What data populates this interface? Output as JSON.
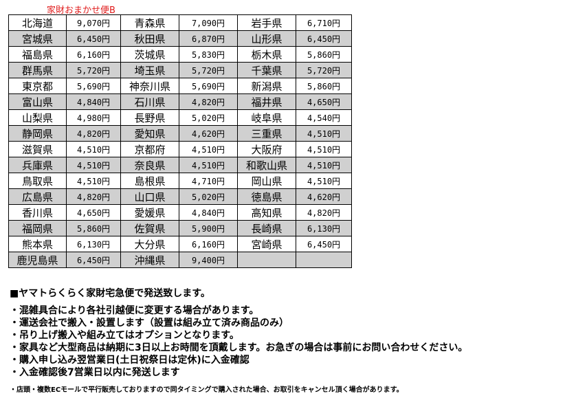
{
  "title": "家財おまかせ便B",
  "rows": [
    [
      [
        "北海道",
        "9,070円"
      ],
      [
        "青森県",
        "7,090円"
      ],
      [
        "岩手県",
        "6,710円"
      ]
    ],
    [
      [
        "宮城県",
        "6,450円"
      ],
      [
        "秋田県",
        "6,870円"
      ],
      [
        "山形県",
        "6,450円"
      ]
    ],
    [
      [
        "福島県",
        "6,160円"
      ],
      [
        "茨城県",
        "5,830円"
      ],
      [
        "栃木県",
        "5,860円"
      ]
    ],
    [
      [
        "群馬県",
        "5,720円"
      ],
      [
        "埼玉県",
        "5,720円"
      ],
      [
        "千葉県",
        "5,720円"
      ]
    ],
    [
      [
        "東京都",
        "5,690円"
      ],
      [
        "神奈川県",
        "5,690円"
      ],
      [
        "新潟県",
        "5,860円"
      ]
    ],
    [
      [
        "富山県",
        "4,840円"
      ],
      [
        "石川県",
        "4,820円"
      ],
      [
        "福井県",
        "4,650円"
      ]
    ],
    [
      [
        "山梨県",
        "4,980円"
      ],
      [
        "長野県",
        "5,020円"
      ],
      [
        "岐阜県",
        "4,540円"
      ]
    ],
    [
      [
        "静岡県",
        "4,820円"
      ],
      [
        "愛知県",
        "4,620円"
      ],
      [
        "三重県",
        "4,510円"
      ]
    ],
    [
      [
        "滋賀県",
        "4,510円"
      ],
      [
        "京都府",
        "4,510円"
      ],
      [
        "大阪府",
        "4,510円"
      ]
    ],
    [
      [
        "兵庫県",
        "4,510円"
      ],
      [
        "奈良県",
        "4,510円"
      ],
      [
        "和歌山県",
        "4,510円"
      ]
    ],
    [
      [
        "鳥取県",
        "4,510円"
      ],
      [
        "島根県",
        "4,710円"
      ],
      [
        "岡山県",
        "4,510円"
      ]
    ],
    [
      [
        "広島県",
        "4,820円"
      ],
      [
        "山口県",
        "5,020円"
      ],
      [
        "徳島県",
        "4,620円"
      ]
    ],
    [
      [
        "香川県",
        "4,650円"
      ],
      [
        "愛媛県",
        "4,840円"
      ],
      [
        "高知県",
        "4,820円"
      ]
    ],
    [
      [
        "福岡県",
        "5,860円"
      ],
      [
        "佐賀県",
        "5,900円"
      ],
      [
        "長崎県",
        "6,130円"
      ]
    ],
    [
      [
        "熊本県",
        "6,130円"
      ],
      [
        "大分県",
        "6,160円"
      ],
      [
        "宮崎県",
        "6,450円"
      ]
    ],
    [
      [
        "鹿児島県",
        "6,450円"
      ],
      [
        "沖縄県",
        "9,400円"
      ],
      [
        "",
        ""
      ]
    ]
  ],
  "notes": {
    "heading": "■ヤマトらくらく家財宅急便で発送致します。",
    "bullets": [
      "・混雑具合により各社引越便に変更する場合があります。",
      "・運送会社で搬入・設置します（設置は組み立て済み商品のみ）",
      "・吊り上げ搬入や組み立てはオプションとなります。",
      "・家具など大型商品は納期に3日以上お時間を頂戴します。お急ぎの場合は事前にお問い合わせください。",
      "・購入申し込み翌営業日(土日祝祭日は定休)に入金確認",
      "・入金確認後7営業日以内に発送します"
    ],
    "small": "・店頭・複数ECモールで平行販売しておりますので同タイミングで購入された場合、お取引をキャンセル頂く場合があります。"
  },
  "colors": {
    "title": "#e01b1b",
    "stripe": "#d0d0d0"
  }
}
